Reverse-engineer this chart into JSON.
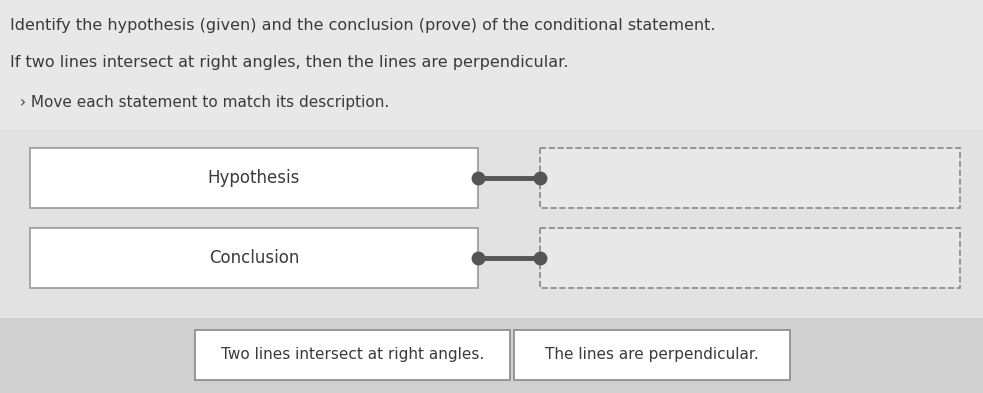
{
  "title_line1": "Identify the hypothesis (given) and the conclusion (prove) of the conditional statement.",
  "title_line2": "If two lines intersect at right angles, then the lines are perpendicular.",
  "title_line3": "› Move each statement to match its description.",
  "label_hypothesis": "Hypothesis",
  "label_conclusion": "Conclusion",
  "card1": "Two lines intersect at right angles.",
  "card2": "The lines are perpendicular.",
  "text_color": "#3a3a3a",
  "top_bg": "#e8e8e8",
  "mid_bg": "#e0e0e0",
  "bot_bg": "#d0d0d0",
  "solid_box_color": "#ffffff",
  "solid_box_edge": "#999999",
  "dashed_box_color": "#e8e8e8",
  "dashed_box_edge": "#888888",
  "connector_color": "#555555",
  "card_bg": "#ffffff",
  "card_edge": "#888888"
}
